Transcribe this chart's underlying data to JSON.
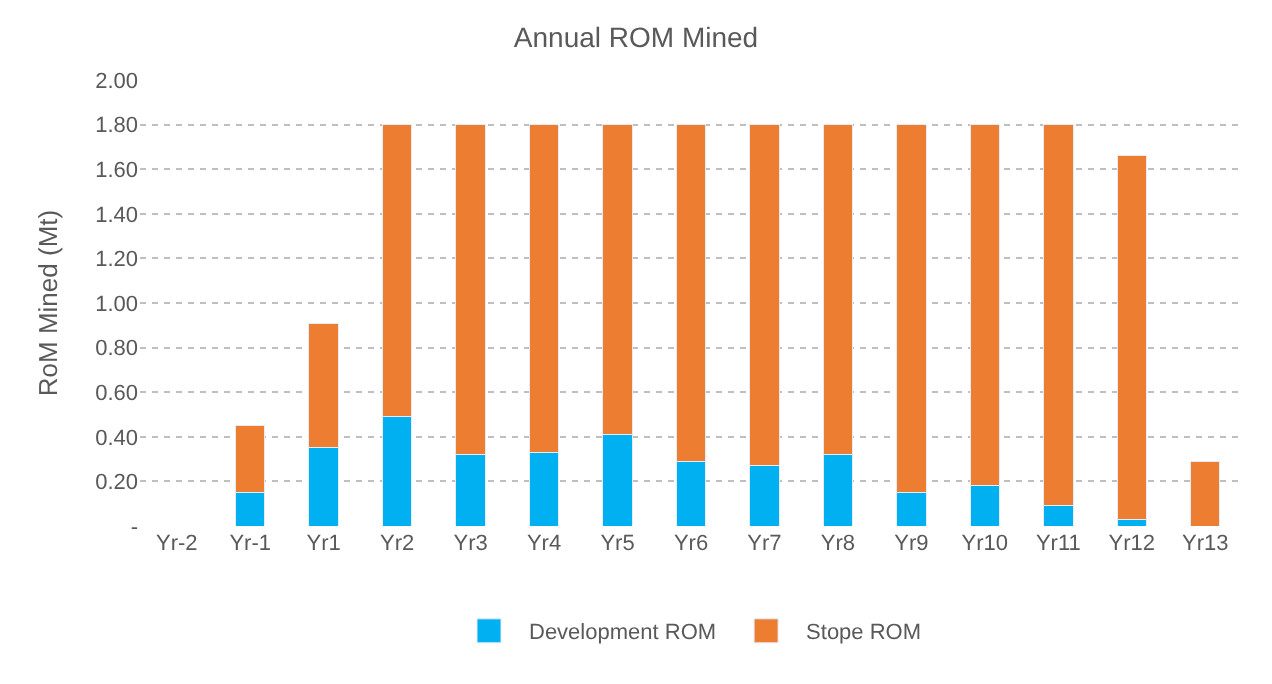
{
  "chart_data": {
    "type": "bar",
    "title": "Annual ROM Mined",
    "ylabel": "RoM Mined (Mt)",
    "stacked": true,
    "legend": "bottom",
    "grid": "y",
    "categories": [
      "Yr-2",
      "Yr-1",
      "Yr1",
      "Yr2",
      "Yr3",
      "Yr4",
      "Yr5",
      "Yr6",
      "Yr7",
      "Yr8",
      "Yr9",
      "Yr10",
      "Yr11",
      "Yr12",
      "Yr13"
    ],
    "series": [
      {
        "name": "Development ROM",
        "color": "#00b0f0",
        "values": [
          null,
          0.15,
          0.35,
          0.49,
          0.32,
          0.33,
          0.41,
          0.29,
          0.27,
          0.32,
          0.15,
          0.18,
          0.09,
          0.03,
          null
        ]
      },
      {
        "name": "Stope ROM",
        "color": "#ed7d31",
        "values": [
          null,
          0.3,
          0.56,
          1.31,
          1.48,
          1.47,
          1.39,
          1.51,
          1.53,
          1.48,
          1.65,
          1.62,
          1.71,
          1.63,
          0.29
        ]
      }
    ],
    "ylim": [
      0,
      2
    ],
    "yticks": [
      {
        "value": 0,
        "label": "-"
      },
      {
        "value": 0.2,
        "label": "0.20"
      },
      {
        "value": 0.4,
        "label": "0.40"
      },
      {
        "value": 0.6,
        "label": "0.60"
      },
      {
        "value": 0.8,
        "label": "0.80"
      },
      {
        "value": 1.0,
        "label": "1.00"
      },
      {
        "value": 1.2,
        "label": "1.20"
      },
      {
        "value": 1.4,
        "label": "1.40"
      },
      {
        "value": 1.6,
        "label": "1.60"
      },
      {
        "value": 1.8,
        "label": "1.80"
      },
      {
        "value": 2.0,
        "label": "2.00"
      }
    ]
  }
}
